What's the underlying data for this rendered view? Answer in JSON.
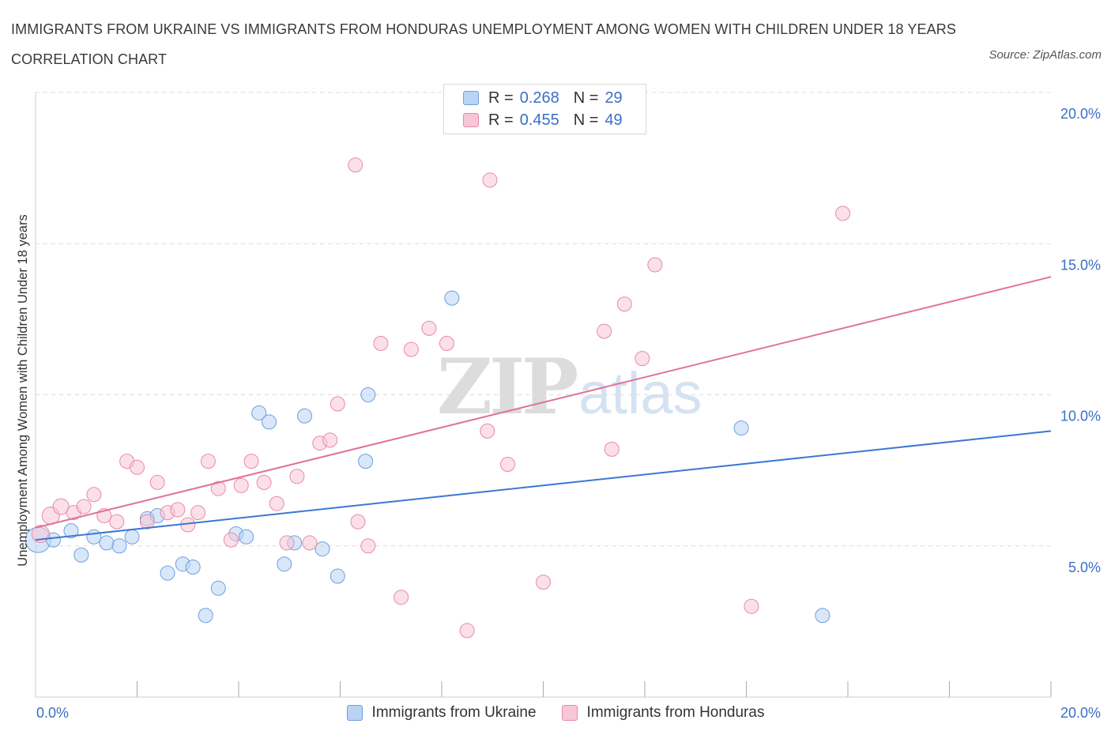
{
  "header": {
    "title": "IMMIGRANTS FROM UKRAINE VS IMMIGRANTS FROM HONDURAS UNEMPLOYMENT AMONG WOMEN WITH CHILDREN UNDER 18 YEARS CORRELATION CHART",
    "source": "Source: ZipAtlas.com"
  },
  "watermark": {
    "zip": "ZIP",
    "atlas": "atlas"
  },
  "legend": {
    "ukraine": {
      "r_label": "R =",
      "r_value": "0.268",
      "n_label": "N =",
      "n_value": "29"
    },
    "honduras": {
      "r_label": "R =",
      "r_value": "0.455",
      "n_label": "N =",
      "n_value": "49"
    }
  },
  "colors": {
    "ukraine_fill": "#b9d3f5",
    "ukraine_stroke": "#6f9fdc",
    "ukraine_line": "#3a78d4",
    "honduras_fill": "#f8c6d6",
    "honduras_stroke": "#e88aa8",
    "honduras_line": "#e0729a",
    "tick_text": "#3b6fc6",
    "grid": "#dddddd"
  },
  "chart_data": {
    "type": "scatter",
    "title": "IMMIGRANTS FROM UKRAINE VS IMMIGRANTS FROM HONDURAS UNEMPLOYMENT AMONG WOMEN WITH CHILDREN UNDER 18 YEARS CORRELATION CHART",
    "xlabel": "",
    "ylabel": "Unemployment Among Women with Children Under 18 years",
    "xlim": [
      0,
      20
    ],
    "ylim": [
      0,
      20
    ],
    "x_tick_labels": [
      "0.0%",
      "20.0%"
    ],
    "y_ticks": [
      5,
      10,
      15,
      20
    ],
    "y_tick_labels": [
      "5.0%",
      "10.0%",
      "15.0%",
      "20.0%"
    ],
    "grid": true,
    "series": [
      {
        "name": "Immigrants from Ukraine",
        "r": 0.268,
        "n": 29,
        "trend": {
          "x0": 0,
          "y0": 5.2,
          "x1": 20,
          "y1": 8.8
        },
        "points": [
          [
            0.05,
            5.2,
            16
          ],
          [
            0.35,
            5.2,
            9
          ],
          [
            0.7,
            5.5,
            9
          ],
          [
            0.9,
            4.7,
            9
          ],
          [
            1.15,
            5.3,
            9
          ],
          [
            1.4,
            5.1,
            9
          ],
          [
            1.65,
            5.0,
            9
          ],
          [
            1.9,
            5.3,
            9
          ],
          [
            2.2,
            5.9,
            9
          ],
          [
            2.4,
            6.0,
            9
          ],
          [
            2.6,
            4.1,
            9
          ],
          [
            2.9,
            4.4,
            9
          ],
          [
            3.1,
            4.3,
            9
          ],
          [
            3.35,
            2.7,
            9
          ],
          [
            3.6,
            3.6,
            9
          ],
          [
            3.95,
            5.4,
            9
          ],
          [
            4.15,
            5.3,
            9
          ],
          [
            4.4,
            9.4,
            9
          ],
          [
            4.6,
            9.1,
            9
          ],
          [
            4.9,
            4.4,
            9
          ],
          [
            5.1,
            5.1,
            9
          ],
          [
            5.3,
            9.3,
            9
          ],
          [
            5.65,
            4.9,
            9
          ],
          [
            5.95,
            4.0,
            9
          ],
          [
            6.5,
            7.8,
            9
          ],
          [
            6.55,
            10.0,
            9
          ],
          [
            8.2,
            13.2,
            9
          ],
          [
            13.9,
            8.9,
            9
          ],
          [
            15.5,
            2.7,
            9
          ]
        ]
      },
      {
        "name": "Immigrants from Honduras",
        "r": 0.455,
        "n": 49,
        "trend": {
          "x0": 0,
          "y0": 5.6,
          "x1": 20,
          "y1": 13.9
        },
        "points": [
          [
            0.1,
            5.4,
            11
          ],
          [
            0.3,
            6.0,
            11
          ],
          [
            0.5,
            6.3,
            10
          ],
          [
            0.75,
            6.1,
            9
          ],
          [
            0.95,
            6.3,
            9
          ],
          [
            1.15,
            6.7,
            9
          ],
          [
            1.35,
            6.0,
            9
          ],
          [
            1.6,
            5.8,
            9
          ],
          [
            1.8,
            7.8,
            9
          ],
          [
            2.0,
            7.6,
            9
          ],
          [
            2.2,
            5.8,
            9
          ],
          [
            2.4,
            7.1,
            9
          ],
          [
            2.6,
            6.1,
            9
          ],
          [
            2.8,
            6.2,
            9
          ],
          [
            3.0,
            5.7,
            9
          ],
          [
            3.2,
            6.1,
            9
          ],
          [
            3.4,
            7.8,
            9
          ],
          [
            3.6,
            6.9,
            9
          ],
          [
            3.85,
            5.2,
            9
          ],
          [
            4.05,
            7.0,
            9
          ],
          [
            4.25,
            7.8,
            9
          ],
          [
            4.5,
            7.1,
            9
          ],
          [
            4.75,
            6.4,
            9
          ],
          [
            4.95,
            5.1,
            9
          ],
          [
            5.15,
            7.3,
            9
          ],
          [
            5.4,
            5.1,
            9
          ],
          [
            5.6,
            8.4,
            9
          ],
          [
            5.8,
            8.5,
            9
          ],
          [
            5.95,
            9.7,
            9
          ],
          [
            6.3,
            17.6,
            9
          ],
          [
            6.35,
            5.8,
            9
          ],
          [
            6.55,
            5.0,
            9
          ],
          [
            6.8,
            11.7,
            9
          ],
          [
            7.2,
            3.3,
            9
          ],
          [
            7.4,
            11.5,
            9
          ],
          [
            7.75,
            12.2,
            9
          ],
          [
            8.1,
            11.7,
            9
          ],
          [
            8.5,
            2.2,
            9
          ],
          [
            8.9,
            8.8,
            9
          ],
          [
            8.95,
            17.1,
            9
          ],
          [
            9.3,
            7.7,
            9
          ],
          [
            10.0,
            3.8,
            9
          ],
          [
            11.2,
            12.1,
            9
          ],
          [
            11.35,
            8.2,
            9
          ],
          [
            11.6,
            13.0,
            9
          ],
          [
            11.95,
            11.2,
            9
          ],
          [
            12.2,
            14.3,
            9
          ],
          [
            14.1,
            3.0,
            9
          ],
          [
            15.9,
            16.0,
            9
          ]
        ]
      }
    ]
  },
  "bottom_legend": {
    "ukraine_label": "Immigrants from Ukraine",
    "honduras_label": "Immigrants from Honduras"
  }
}
